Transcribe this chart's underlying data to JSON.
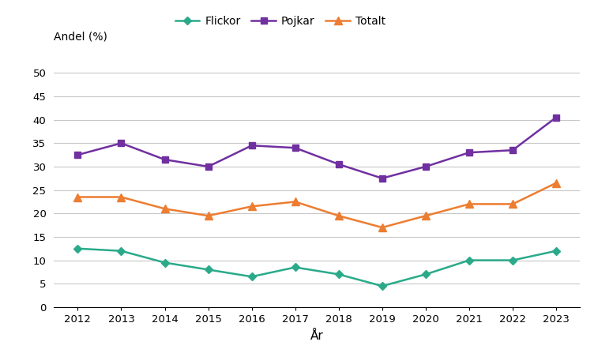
{
  "years": [
    2012,
    2013,
    2014,
    2015,
    2016,
    2017,
    2018,
    2019,
    2020,
    2021,
    2022,
    2023
  ],
  "flickor": [
    12.5,
    12,
    9.5,
    8,
    6.5,
    8.5,
    7,
    4.5,
    7,
    10,
    10,
    12
  ],
  "pojkar": [
    32.5,
    35,
    31.5,
    30,
    34.5,
    34,
    30.5,
    27.5,
    30,
    33,
    33.5,
    40.5
  ],
  "totalt": [
    23.5,
    23.5,
    21,
    19.5,
    21.5,
    22.5,
    19.5,
    17,
    19.5,
    22,
    22,
    26.5
  ],
  "flickor_color": "#2aaa8a",
  "pojkar_color": "#7030a0",
  "totalt_color": "#ed7d31",
  "xlabel": "År",
  "ylim": [
    0,
    52
  ],
  "yticks": [
    0,
    5,
    10,
    15,
    20,
    25,
    30,
    35,
    40,
    45,
    50
  ],
  "legend_flickor": "Flickor",
  "legend_pojkar": "Pojkar",
  "legend_totalt": "Totalt",
  "ylabel_text": "Andel (%)",
  "background_color": "#ffffff",
  "grid_color": "#c8c8c8"
}
